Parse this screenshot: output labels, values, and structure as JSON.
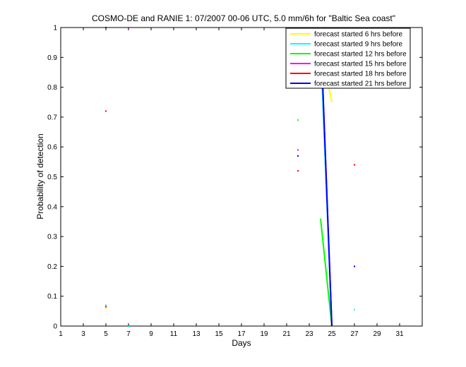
{
  "chart_data": {
    "type": "line",
    "title": "COSMO-DE and RANIE 1: 07/2007 00-06 UTC, 5.0 mm/6h for \"Baltic Sea coast\"",
    "xlabel": "Days",
    "ylabel": "Probability of detection",
    "xlim": [
      1,
      33
    ],
    "ylim": [
      0,
      1
    ],
    "xticks": [
      1,
      3,
      5,
      7,
      9,
      11,
      13,
      15,
      17,
      19,
      21,
      23,
      25,
      27,
      29,
      31
    ],
    "yticks": [
      0,
      0.1,
      0.2,
      0.3,
      0.4,
      0.5,
      0.6,
      0.7,
      0.8,
      0.9,
      1
    ],
    "yticklabels": [
      "0",
      "0.1",
      "0.2",
      "0.3",
      "0.4",
      "0.5",
      "0.6",
      "0.7",
      "0.8",
      "0.9",
      "1"
    ],
    "grid": false,
    "legend_position": "top-right",
    "series": [
      {
        "name": "forecast started 6 hrs before",
        "color": "#ffff00",
        "points": [
          [
            5,
            0.06
          ],
          [
            22,
            0.96
          ],
          [
            24,
            0.94
          ],
          [
            25,
            0.75
          ]
        ]
      },
      {
        "name": "forecast started 9 hrs before",
        "color": "#00ffff",
        "points": [
          [
            5,
            0.07
          ],
          [
            7,
            0.0
          ],
          [
            22,
            0.52
          ],
          [
            24,
            0.94
          ],
          [
            25,
            0.0
          ],
          [
            27,
            0.055
          ]
        ]
      },
      {
        "name": "forecast started 12 hrs before",
        "color": "#00ff00",
        "points": [
          [
            22,
            0.69
          ],
          [
            24,
            0.36
          ],
          [
            25,
            0.0
          ]
        ]
      },
      {
        "name": "forecast started 15 hrs before",
        "color": "#ff00ff",
        "points": [
          [
            5,
            1.0
          ],
          [
            7,
            1.0
          ],
          [
            22,
            0.59
          ],
          [
            24,
            1.0
          ],
          [
            25,
            0.0
          ]
        ]
      },
      {
        "name": "forecast started 18 hrs before",
        "color": "#ff0000",
        "points": [
          [
            5,
            0.72
          ],
          [
            5,
            0.065
          ],
          [
            22,
            0.52
          ],
          [
            27,
            0.54
          ]
        ]
      },
      {
        "name": "forecast started 21 hrs before",
        "color": "#0000ff",
        "points": [
          [
            5,
            1.0
          ],
          [
            22,
            0.57
          ],
          [
            24,
            1.0
          ],
          [
            25,
            0.0
          ],
          [
            27,
            0.2
          ]
        ]
      }
    ]
  }
}
